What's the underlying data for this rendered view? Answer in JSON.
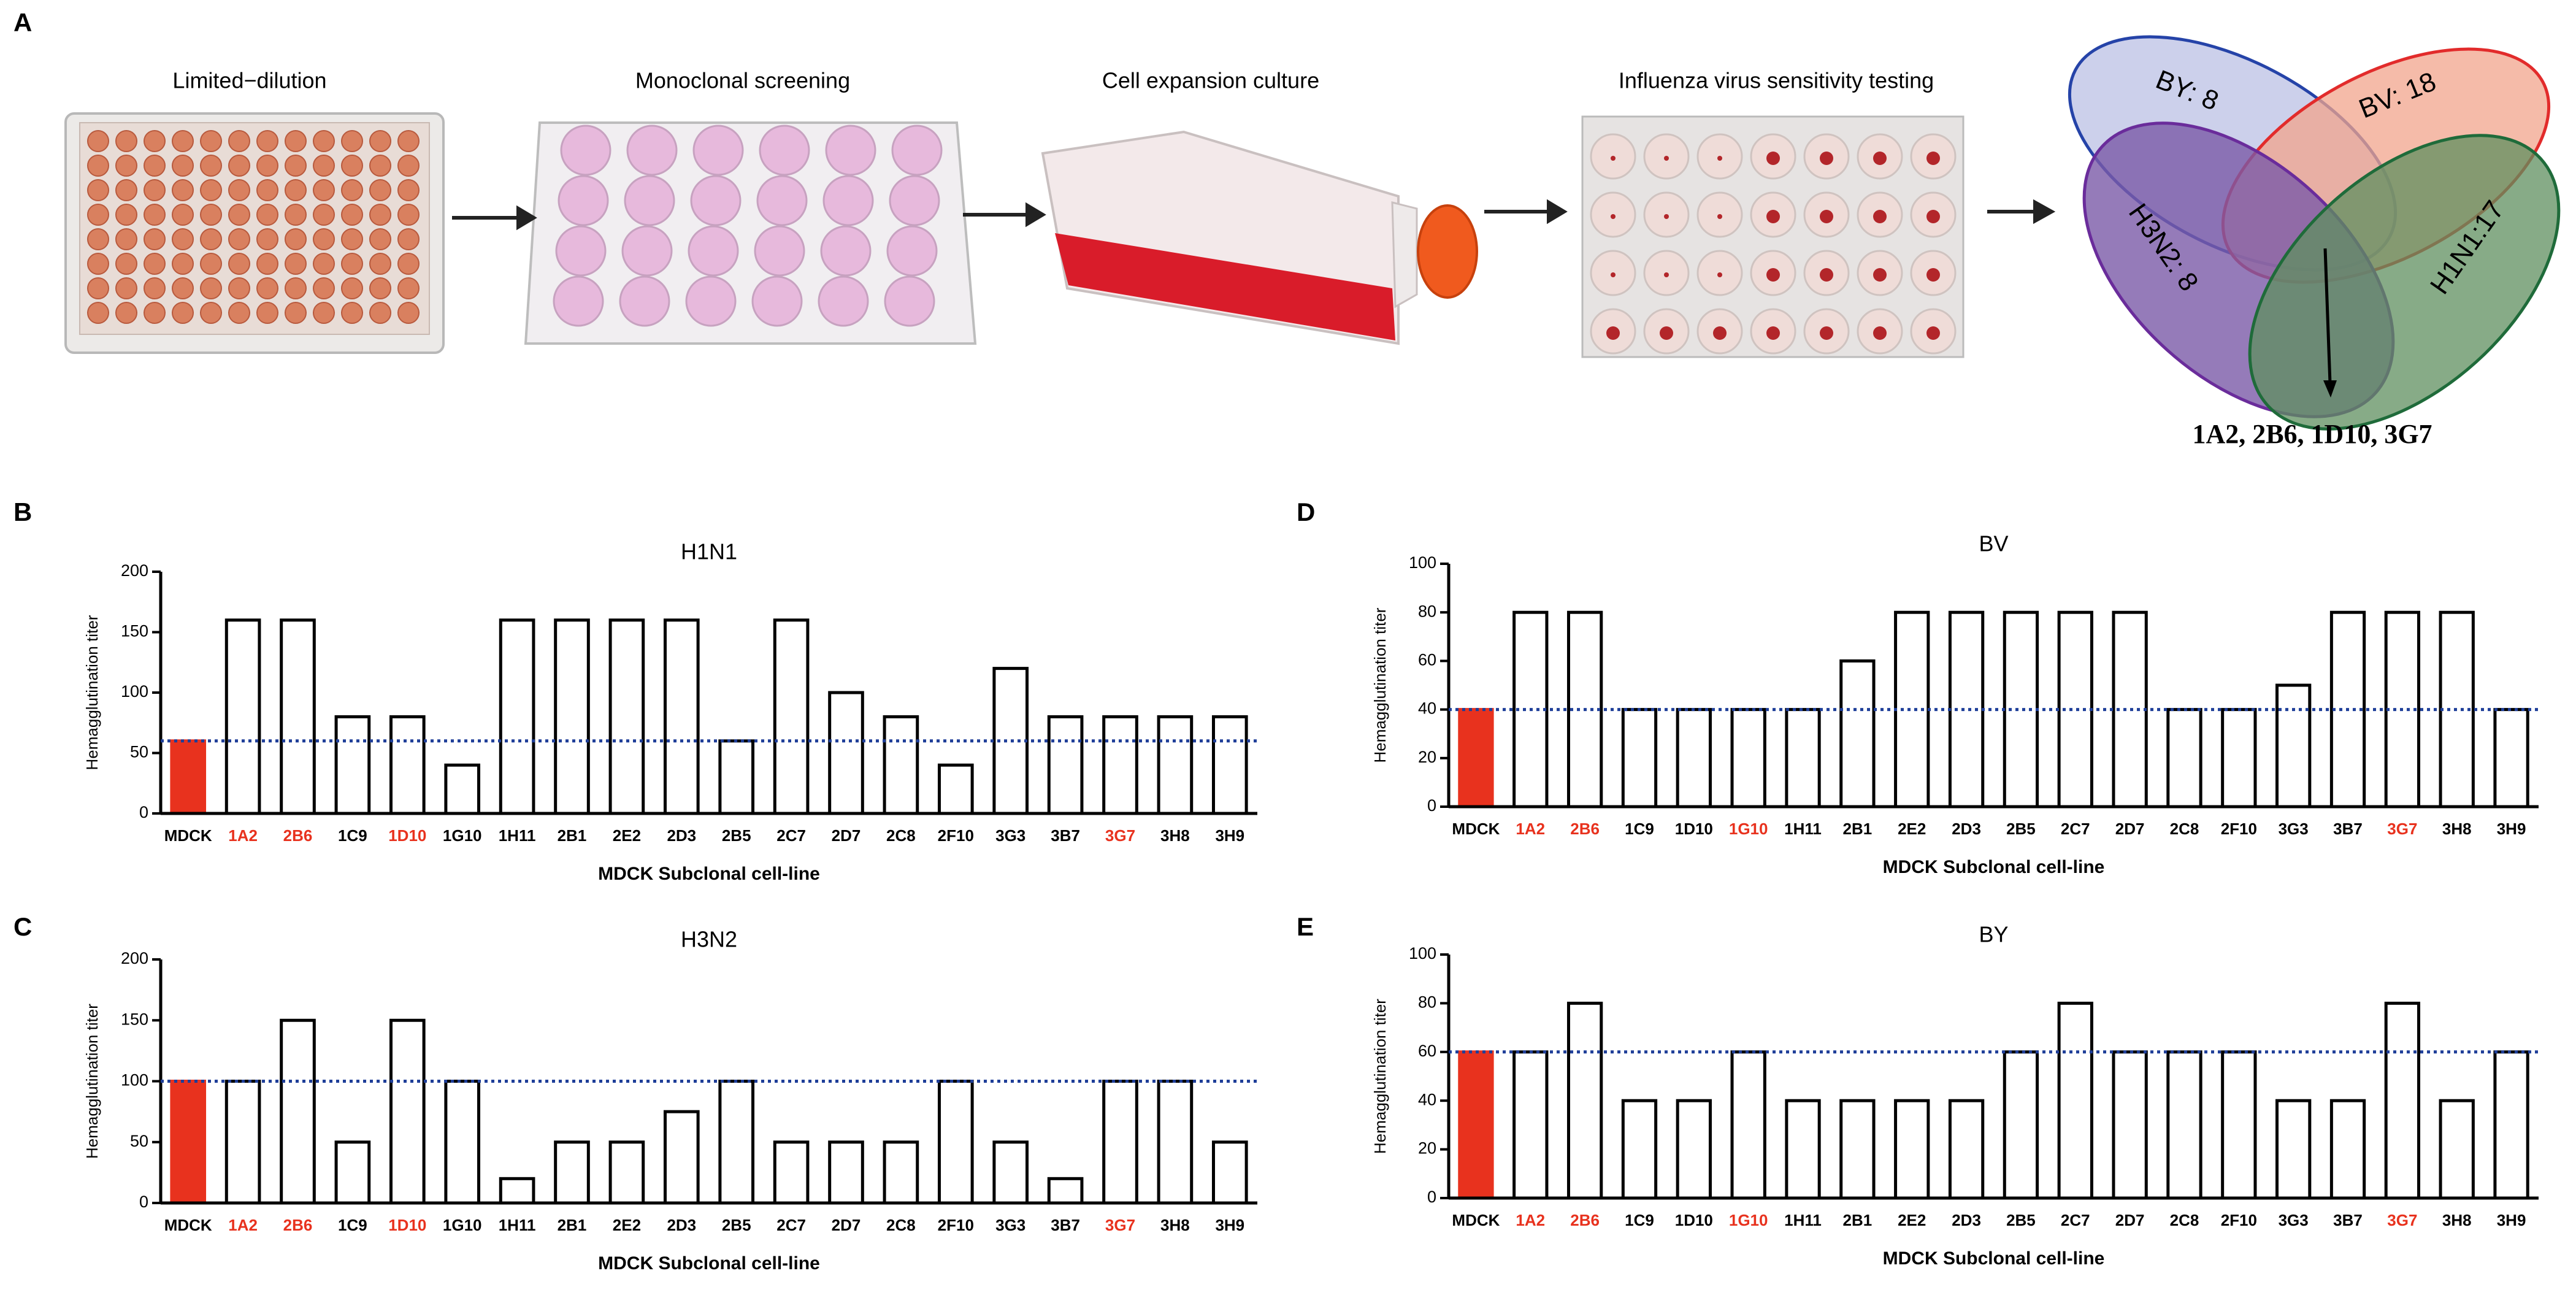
{
  "panel_a": {
    "letter": "A",
    "steps": [
      "Limited−dilution",
      "Monoclonal screening",
      "Cell expansion culture",
      "Influenza virus sensitivity testing"
    ],
    "venn": {
      "sets": [
        "BY: 8",
        "BV: 18",
        "H3N2: 8",
        "H1N1:17"
      ],
      "intersection": "1A2, 2B6, 1D10, 3G7"
    }
  },
  "chart_data": [
    {
      "type": "bar",
      "letter": "B",
      "title": "H1N1",
      "y_label": "Hemagglutination titer",
      "x_label": "MDCK Subclonal cell-line",
      "categories": [
        "MDCK",
        "1A2",
        "2B6",
        "1C9",
        "1D10",
        "1G10",
        "1H11",
        "2B1",
        "2E2",
        "2D3",
        "2B5",
        "2C7",
        "2D7",
        "2C8",
        "2F10",
        "3G3",
        "3B7",
        "3G7",
        "3H8",
        "3H9"
      ],
      "values": [
        60,
        160,
        160,
        80,
        80,
        40,
        160,
        160,
        160,
        160,
        60,
        160,
        100,
        80,
        40,
        120,
        80,
        80,
        80,
        80
      ],
      "bar_colors": [
        "#e8321e",
        "#ffffff",
        "#ffffff",
        "#ffffff",
        "#ffffff",
        "#ffffff",
        "#ffffff",
        "#ffffff",
        "#ffffff",
        "#ffffff",
        "#ffffff",
        "#ffffff",
        "#ffffff",
        "#ffffff",
        "#ffffff",
        "#ffffff",
        "#ffffff",
        "#ffffff",
        "#ffffff",
        "#ffffff"
      ],
      "label_colors": [
        "#000000",
        "#e8321e",
        "#e8321e",
        "#000000",
        "#e8321e",
        "#000000",
        "#000000",
        "#000000",
        "#000000",
        "#000000",
        "#000000",
        "#000000",
        "#000000",
        "#000000",
        "#000000",
        "#000000",
        "#000000",
        "#e8321e",
        "#000000",
        "#000000"
      ],
      "reference_line": 60,
      "reference_color": "#1f3f99",
      "ylim": [
        0,
        200
      ],
      "yticks": [
        0,
        50,
        100,
        150,
        200
      ]
    },
    {
      "type": "bar",
      "letter": "C",
      "title": "H3N2",
      "y_label": "Hemagglutination titer",
      "x_label": "MDCK Subclonal cell-line",
      "categories": [
        "MDCK",
        "1A2",
        "2B6",
        "1C9",
        "1D10",
        "1G10",
        "1H11",
        "2B1",
        "2E2",
        "2D3",
        "2B5",
        "2C7",
        "2D7",
        "2C8",
        "2F10",
        "3G3",
        "3B7",
        "3G7",
        "3H8",
        "3H9"
      ],
      "values": [
        100,
        100,
        150,
        50,
        150,
        100,
        20,
        50,
        50,
        75,
        100,
        50,
        50,
        50,
        100,
        50,
        20,
        100,
        100,
        50
      ],
      "bar_colors": [
        "#e8321e",
        "#ffffff",
        "#ffffff",
        "#ffffff",
        "#ffffff",
        "#ffffff",
        "#ffffff",
        "#ffffff",
        "#ffffff",
        "#ffffff",
        "#ffffff",
        "#ffffff",
        "#ffffff",
        "#ffffff",
        "#ffffff",
        "#ffffff",
        "#ffffff",
        "#ffffff",
        "#ffffff",
        "#ffffff"
      ],
      "label_colors": [
        "#000000",
        "#e8321e",
        "#e8321e",
        "#000000",
        "#e8321e",
        "#000000",
        "#000000",
        "#000000",
        "#000000",
        "#000000",
        "#000000",
        "#000000",
        "#000000",
        "#000000",
        "#000000",
        "#000000",
        "#000000",
        "#e8321e",
        "#000000",
        "#000000"
      ],
      "reference_line": 100,
      "reference_color": "#1f3f99",
      "ylim": [
        0,
        200
      ],
      "yticks": [
        0,
        50,
        100,
        150,
        200
      ]
    },
    {
      "type": "bar",
      "letter": "D",
      "title": "BV",
      "y_label": "Hemagglutination  titer",
      "x_label": "MDCK Subclonal cell-line",
      "categories": [
        "MDCK",
        "1A2",
        "2B6",
        "1C9",
        "1D10",
        "1G10",
        "1H11",
        "2B1",
        "2E2",
        "2D3",
        "2B5",
        "2C7",
        "2D7",
        "2C8",
        "2F10",
        "3G3",
        "3B7",
        "3G7",
        "3H8",
        "3H9"
      ],
      "values": [
        40,
        80,
        80,
        40,
        40,
        40,
        40,
        60,
        80,
        80,
        80,
        80,
        80,
        40,
        40,
        50,
        80,
        80,
        80,
        40
      ],
      "bar_colors": [
        "#e8321e",
        "#ffffff",
        "#ffffff",
        "#ffffff",
        "#ffffff",
        "#ffffff",
        "#ffffff",
        "#ffffff",
        "#ffffff",
        "#ffffff",
        "#ffffff",
        "#ffffff",
        "#ffffff",
        "#ffffff",
        "#ffffff",
        "#ffffff",
        "#ffffff",
        "#ffffff",
        "#ffffff",
        "#ffffff"
      ],
      "label_colors": [
        "#000000",
        "#e8321e",
        "#e8321e",
        "#000000",
        "#000000",
        "#e8321e",
        "#000000",
        "#000000",
        "#000000",
        "#000000",
        "#000000",
        "#000000",
        "#000000",
        "#000000",
        "#000000",
        "#000000",
        "#000000",
        "#e8321e",
        "#000000",
        "#000000"
      ],
      "reference_line": 40,
      "reference_color": "#1f3f99",
      "ylim": [
        0,
        100
      ],
      "yticks": [
        0,
        20,
        40,
        60,
        80,
        100
      ]
    },
    {
      "type": "bar",
      "letter": "E",
      "title": "BY",
      "y_label": "Hemagglutination titer",
      "x_label": "MDCK Subclonal cell-line",
      "categories": [
        "MDCK",
        "1A2",
        "2B6",
        "1C9",
        "1D10",
        "1G10",
        "1H11",
        "2B1",
        "2E2",
        "2D3",
        "2B5",
        "2C7",
        "2D7",
        "2C8",
        "2F10",
        "3G3",
        "3B7",
        "3G7",
        "3H8",
        "3H9"
      ],
      "values": [
        60,
        60,
        80,
        40,
        40,
        60,
        40,
        40,
        40,
        40,
        60,
        80,
        60,
        60,
        60,
        40,
        40,
        80,
        40,
        60
      ],
      "bar_colors": [
        "#e8321e",
        "#ffffff",
        "#ffffff",
        "#ffffff",
        "#ffffff",
        "#ffffff",
        "#ffffff",
        "#ffffff",
        "#ffffff",
        "#ffffff",
        "#ffffff",
        "#ffffff",
        "#ffffff",
        "#ffffff",
        "#ffffff",
        "#ffffff",
        "#ffffff",
        "#ffffff",
        "#ffffff",
        "#ffffff"
      ],
      "label_colors": [
        "#000000",
        "#e8321e",
        "#e8321e",
        "#000000",
        "#000000",
        "#e8321e",
        "#000000",
        "#000000",
        "#000000",
        "#000000",
        "#000000",
        "#000000",
        "#000000",
        "#000000",
        "#000000",
        "#000000",
        "#000000",
        "#e8321e",
        "#000000",
        "#000000"
      ],
      "reference_line": 60,
      "reference_color": "#1f3f99",
      "ylim": [
        0,
        100
      ],
      "yticks": [
        0,
        20,
        40,
        60,
        80,
        100
      ]
    }
  ]
}
